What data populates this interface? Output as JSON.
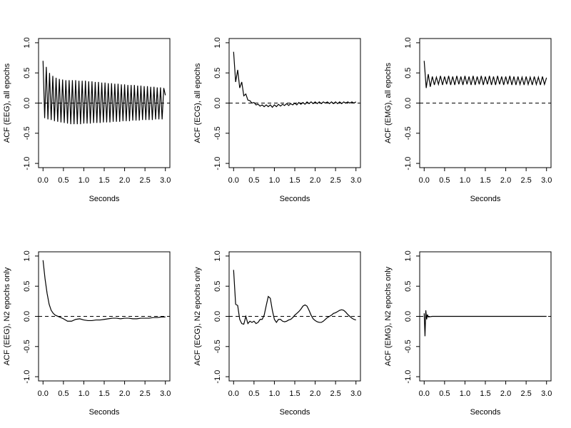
{
  "chart_data": [
    {
      "type": "line",
      "ylabel": "ACF (EEG), all epochs",
      "xlabel": "Seconds",
      "color": "#000000",
      "reference_line": 0,
      "xlim": [
        -0.11,
        3.11
      ],
      "ylim": [
        -1.07,
        1.07
      ],
      "xticks": [
        {
          "value": 0,
          "label": "0.0"
        },
        0.5,
        {
          "value": 1,
          "label": "1.0"
        },
        1.5,
        {
          "value": 2,
          "label": "2.0"
        },
        2.5,
        {
          "value": 3,
          "label": "3.0"
        }
      ],
      "yticks": [
        {
          "value": -1,
          "label": "-1.0"
        },
        -0.5,
        {
          "value": 0,
          "label": "0.0"
        },
        0.5,
        {
          "value": 1,
          "label": "1.0"
        }
      ],
      "x": [
        0,
        0.04,
        0.08,
        0.12,
        0.16,
        0.2,
        0.24,
        0.28,
        0.32,
        0.36,
        0.4,
        0.44,
        0.48,
        0.52,
        0.56,
        0.6,
        0.64,
        0.68,
        0.72,
        0.76,
        0.8,
        0.84,
        0.88,
        0.92,
        0.96,
        1,
        1.04,
        1.08,
        1.12,
        1.16,
        1.2,
        1.24,
        1.28,
        1.32,
        1.36,
        1.4,
        1.44,
        1.48,
        1.52,
        1.56,
        1.6,
        1.64,
        1.68,
        1.72,
        1.76,
        1.8,
        1.84,
        1.88,
        1.92,
        1.96,
        2,
        2.04,
        2.08,
        2.12,
        2.16,
        2.2,
        2.24,
        2.28,
        2.32,
        2.36,
        2.4,
        2.44,
        2.48,
        2.52,
        2.56,
        2.6,
        2.64,
        2.68,
        2.72,
        2.76,
        2.8,
        2.84,
        2.88,
        2.92,
        2.96,
        3
      ],
      "values": [
        0.7,
        -0.25,
        0.6,
        -0.27,
        0.5,
        -0.28,
        0.45,
        -0.3,
        0.42,
        -0.31,
        0.4,
        -0.32,
        0.39,
        -0.33,
        0.38,
        -0.34,
        0.38,
        -0.35,
        0.38,
        -0.35,
        0.38,
        -0.35,
        0.37,
        -0.35,
        0.37,
        -0.34,
        0.37,
        -0.34,
        0.36,
        -0.34,
        0.36,
        -0.33,
        0.35,
        -0.33,
        0.35,
        -0.33,
        0.34,
        -0.32,
        0.34,
        -0.32,
        0.33,
        -0.32,
        0.33,
        -0.31,
        0.32,
        -0.31,
        0.32,
        -0.31,
        0.31,
        -0.3,
        0.31,
        -0.3,
        0.3,
        -0.3,
        0.3,
        -0.29,
        0.3,
        -0.29,
        0.29,
        -0.29,
        0.29,
        -0.28,
        0.28,
        -0.28,
        0.28,
        -0.28,
        0.27,
        -0.28,
        0.27,
        -0.27,
        0.26,
        -0.27,
        0.26,
        -0.27,
        0.25,
        0.13
      ]
    },
    {
      "type": "line",
      "ylabel": "ACF (ECG), all epochs",
      "xlabel": "Seconds",
      "color": "#000000",
      "reference_line": 0,
      "xlim": [
        -0.11,
        3.11
      ],
      "ylim": [
        -1.07,
        1.07
      ],
      "xticks": [
        {
          "value": 0,
          "label": "0.0"
        },
        0.5,
        {
          "value": 1,
          "label": "1.0"
        },
        1.5,
        {
          "value": 2,
          "label": "2.0"
        },
        2.5,
        {
          "value": 3,
          "label": "3.0"
        }
      ],
      "yticks": [
        {
          "value": -1,
          "label": "-1.0"
        },
        -0.5,
        {
          "value": 0,
          "label": "0.0"
        },
        0.5,
        {
          "value": 1,
          "label": "1.0"
        }
      ],
      "x": [
        0,
        0.05,
        0.1,
        0.15,
        0.2,
        0.25,
        0.3,
        0.35,
        0.4,
        0.45,
        0.5,
        0.55,
        0.6,
        0.65,
        0.7,
        0.75,
        0.8,
        0.85,
        0.9,
        0.95,
        1,
        1.05,
        1.1,
        1.15,
        1.2,
        1.25,
        1.3,
        1.35,
        1.4,
        1.45,
        1.5,
        1.55,
        1.6,
        1.65,
        1.7,
        1.75,
        1.8,
        1.85,
        1.9,
        1.95,
        2,
        2.05,
        2.1,
        2.15,
        2.2,
        2.25,
        2.3,
        2.35,
        2.4,
        2.45,
        2.5,
        2.55,
        2.6,
        2.65,
        2.7,
        2.75,
        2.8,
        2.85,
        2.9,
        2.95,
        3
      ],
      "values": [
        0.85,
        0.35,
        0.55,
        0.25,
        0.35,
        0.12,
        0.15,
        0.05,
        0.04,
        0.0,
        0.01,
        -0.03,
        -0.02,
        -0.05,
        -0.03,
        -0.06,
        -0.03,
        -0.06,
        -0.03,
        -0.07,
        -0.03,
        -0.06,
        -0.02,
        -0.05,
        -0.02,
        -0.04,
        -0.01,
        -0.04,
        -0.01,
        -0.03,
        0.0,
        -0.03,
        0.01,
        -0.02,
        0.01,
        -0.02,
        0.02,
        -0.01,
        0.02,
        -0.01,
        0.02,
        -0.01,
        0.02,
        -0.01,
        0.02,
        0.0,
        0.02,
        -0.01,
        0.02,
        -0.01,
        0.02,
        -0.01,
        0.02,
        -0.01,
        0.02,
        0.0,
        0.02,
        0.0,
        0.02,
        0.0,
        0.02
      ]
    },
    {
      "type": "line",
      "ylabel": "ACF (EMG), all epochs",
      "xlabel": "Seconds",
      "color": "#000000",
      "reference_line": 0,
      "xlim": [
        -0.11,
        3.11
      ],
      "ylim": [
        -1.07,
        1.07
      ],
      "xticks": [
        {
          "value": 0,
          "label": "0.0"
        },
        0.5,
        {
          "value": 1,
          "label": "1.0"
        },
        1.5,
        {
          "value": 2,
          "label": "2.0"
        },
        2.5,
        {
          "value": 3,
          "label": "3.0"
        }
      ],
      "yticks": [
        {
          "value": -1,
          "label": "-1.0"
        },
        -0.5,
        {
          "value": 0,
          "label": "0.0"
        },
        0.5,
        {
          "value": 1,
          "label": "1.0"
        }
      ],
      "x": [
        0,
        0.05,
        0.1,
        0.15,
        0.2,
        0.25,
        0.3,
        0.35,
        0.4,
        0.45,
        0.5,
        0.55,
        0.6,
        0.65,
        0.7,
        0.75,
        0.8,
        0.85,
        0.9,
        0.95,
        1,
        1.05,
        1.1,
        1.15,
        1.2,
        1.25,
        1.3,
        1.35,
        1.4,
        1.45,
        1.5,
        1.55,
        1.6,
        1.65,
        1.7,
        1.75,
        1.8,
        1.85,
        1.9,
        1.95,
        2,
        2.05,
        2.1,
        2.15,
        2.2,
        2.25,
        2.3,
        2.35,
        2.4,
        2.45,
        2.5,
        2.55,
        2.6,
        2.65,
        2.7,
        2.75,
        2.8,
        2.85,
        2.9,
        2.95,
        3
      ],
      "values": [
        0.7,
        0.25,
        0.48,
        0.27,
        0.44,
        0.3,
        0.43,
        0.31,
        0.45,
        0.3,
        0.44,
        0.31,
        0.45,
        0.3,
        0.44,
        0.3,
        0.45,
        0.31,
        0.44,
        0.3,
        0.45,
        0.31,
        0.44,
        0.3,
        0.45,
        0.3,
        0.44,
        0.31,
        0.45,
        0.3,
        0.44,
        0.31,
        0.45,
        0.3,
        0.44,
        0.3,
        0.45,
        0.31,
        0.44,
        0.3,
        0.44,
        0.31,
        0.45,
        0.3,
        0.44,
        0.3,
        0.44,
        0.31,
        0.43,
        0.3,
        0.44,
        0.31,
        0.43,
        0.3,
        0.44,
        0.31,
        0.43,
        0.3,
        0.44,
        0.31,
        0.42
      ]
    },
    {
      "type": "line",
      "ylabel": "ACF (EEG), N2 epochs only",
      "xlabel": "Seconds",
      "color": "#000000",
      "reference_line": 0,
      "xlim": [
        -0.11,
        3.11
      ],
      "ylim": [
        -1.07,
        1.07
      ],
      "xticks": [
        {
          "value": 0,
          "label": "0.0"
        },
        0.5,
        {
          "value": 1,
          "label": "1.0"
        },
        1.5,
        {
          "value": 2,
          "label": "2.0"
        },
        2.5,
        {
          "value": 3,
          "label": "3.0"
        }
      ],
      "yticks": [
        {
          "value": -1,
          "label": "-1.0"
        },
        -0.5,
        {
          "value": 0,
          "label": "0.0"
        },
        0.5,
        {
          "value": 1,
          "label": "1.0"
        }
      ],
      "x": [
        0,
        0.05,
        0.1,
        0.15,
        0.2,
        0.25,
        0.3,
        0.4,
        0.5,
        0.6,
        0.7,
        0.8,
        0.9,
        1,
        1.1,
        1.2,
        1.3,
        1.4,
        1.5,
        1.6,
        1.7,
        1.8,
        1.9,
        2,
        2.1,
        2.2,
        2.3,
        2.4,
        2.5,
        2.6,
        2.7,
        2.8,
        2.9,
        3
      ],
      "values": [
        0.93,
        0.62,
        0.38,
        0.2,
        0.1,
        0.05,
        0.02,
        -0.01,
        -0.04,
        -0.08,
        -0.08,
        -0.05,
        -0.04,
        -0.06,
        -0.07,
        -0.07,
        -0.06,
        -0.06,
        -0.05,
        -0.04,
        -0.03,
        -0.03,
        -0.04,
        -0.03,
        -0.03,
        -0.04,
        -0.04,
        -0.03,
        -0.03,
        -0.03,
        -0.02,
        -0.02,
        -0.01,
        -0.01
      ]
    },
    {
      "type": "line",
      "ylabel": "ACF (ECG), N2 epochs only",
      "xlabel": "Seconds",
      "color": "#000000",
      "reference_line": 0,
      "xlim": [
        -0.11,
        3.11
      ],
      "ylim": [
        -1.07,
        1.07
      ],
      "xticks": [
        {
          "value": 0,
          "label": "0.0"
        },
        0.5,
        {
          "value": 1,
          "label": "1.0"
        },
        1.5,
        {
          "value": 2,
          "label": "2.0"
        },
        2.5,
        {
          "value": 3,
          "label": "3.0"
        }
      ],
      "yticks": [
        {
          "value": -1,
          "label": "-1.0"
        },
        -0.5,
        {
          "value": 0,
          "label": "0.0"
        },
        0.5,
        {
          "value": 1,
          "label": "1.0"
        }
      ],
      "x": [
        0,
        0.05,
        0.1,
        0.15,
        0.2,
        0.25,
        0.3,
        0.35,
        0.4,
        0.45,
        0.5,
        0.55,
        0.6,
        0.65,
        0.7,
        0.75,
        0.8,
        0.85,
        0.9,
        0.95,
        1,
        1.05,
        1.1,
        1.15,
        1.2,
        1.25,
        1.3,
        1.35,
        1.4,
        1.45,
        1.5,
        1.55,
        1.6,
        1.65,
        1.7,
        1.75,
        1.8,
        1.85,
        1.9,
        1.95,
        2,
        2.05,
        2.1,
        2.15,
        2.2,
        2.25,
        2.3,
        2.35,
        2.4,
        2.45,
        2.5,
        2.55,
        2.6,
        2.65,
        2.7,
        2.75,
        2.8,
        2.85,
        2.9,
        2.95,
        3
      ],
      "values": [
        0.77,
        0.2,
        0.18,
        -0.05,
        -0.12,
        -0.13,
        0.0,
        -0.12,
        -0.08,
        -0.1,
        -0.08,
        -0.12,
        -0.1,
        -0.05,
        -0.05,
        0.02,
        0.18,
        0.33,
        0.3,
        0.1,
        -0.05,
        -0.1,
        -0.05,
        -0.05,
        -0.08,
        -0.09,
        -0.08,
        -0.06,
        -0.05,
        -0.02,
        0.02,
        0.05,
        0.08,
        0.12,
        0.17,
        0.19,
        0.17,
        0.1,
        0.02,
        -0.04,
        -0.07,
        -0.09,
        -0.1,
        -0.1,
        -0.08,
        -0.05,
        -0.02,
        0.0,
        0.02,
        0.05,
        0.06,
        0.08,
        0.1,
        0.11,
        0.1,
        0.07,
        0.03,
        0.0,
        -0.03,
        -0.05,
        -0.06
      ]
    },
    {
      "type": "line",
      "ylabel": "ACF (EMG), N2 epochs only",
      "xlabel": "Seconds",
      "color": "#000000",
      "reference_line": 0,
      "xlim": [
        -0.11,
        3.11
      ],
      "ylim": [
        -1.07,
        1.07
      ],
      "xticks": [
        {
          "value": 0,
          "label": "0.0"
        },
        0.5,
        {
          "value": 1,
          "label": "1.0"
        },
        1.5,
        {
          "value": 2,
          "label": "2.0"
        },
        2.5,
        {
          "value": 3,
          "label": "3.0"
        }
      ],
      "yticks": [
        {
          "value": -1,
          "label": "-1.0"
        },
        -0.5,
        {
          "value": 0,
          "label": "0.0"
        },
        0.5,
        {
          "value": 1,
          "label": "1.0"
        }
      ],
      "x": [
        0,
        0.02,
        0.04,
        0.06,
        0.08,
        0.1,
        0.2,
        0.3,
        0.4,
        0.5,
        0.6,
        0.7,
        0.8,
        0.9,
        1,
        1.1,
        1.2,
        1.3,
        1.4,
        1.5,
        1.6,
        1.7,
        1.8,
        1.9,
        2,
        2.1,
        2.2,
        2.3,
        2.4,
        2.5,
        2.6,
        2.7,
        2.8,
        2.9,
        3
      ],
      "values": [
        0.05,
        -0.33,
        0.1,
        -0.05,
        0.03,
        -0.01,
        0.0,
        0.0,
        0.0,
        0.0,
        0.0,
        0.0,
        0.0,
        0.0,
        0.0,
        0.0,
        0.0,
        0.0,
        0.0,
        0.0,
        0.0,
        0.0,
        0.0,
        0.0,
        0.0,
        0.0,
        0.0,
        0.0,
        0.0,
        0.0,
        0.0,
        0.0,
        0.0,
        0.0,
        0.0
      ]
    }
  ]
}
